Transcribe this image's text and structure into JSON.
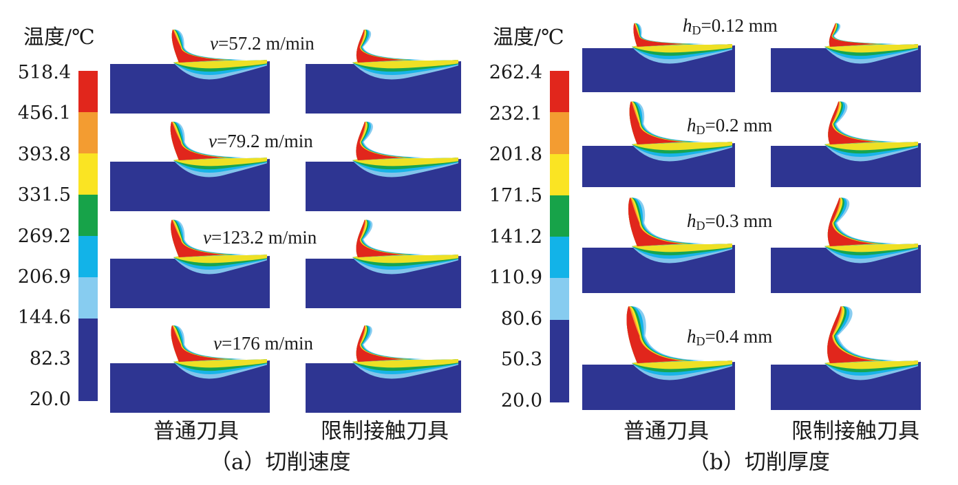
{
  "panel_a": {
    "unit_title": "温度/℃",
    "colorbar": {
      "ticks": [
        "518.4",
        "456.1",
        "393.8",
        "331.5",
        "269.2",
        "206.9",
        "144.6",
        "82.3",
        "20.0"
      ],
      "band_colors": [
        "#e1261c",
        "#f39c31",
        "#fae423",
        "#17a349",
        "#12b3e8",
        "#87ccf0",
        "#2e3592",
        "#2e3592"
      ]
    },
    "labels": [
      "v=57.2 m/min",
      "v=79.2 m/min",
      "v=123.2 m/min",
      "v=176 m/min"
    ],
    "label_parts": [
      {
        "var": "v",
        "value": "=57.2 m/min"
      },
      {
        "var": "v",
        "value": "=79.2 m/min"
      },
      {
        "var": "v",
        "value": "=123.2 m/min"
      },
      {
        "var": "v",
        "value": "=176 m/min"
      }
    ],
    "column_labels": [
      "普通刀具",
      "限制接触刀具"
    ],
    "caption": "（a）切削速度"
  },
  "panel_b": {
    "unit_title": "温度/℃",
    "colorbar": {
      "ticks": [
        "262.4",
        "232.1",
        "201.8",
        "171.5",
        "141.2",
        "110.9",
        "80.6",
        "50.3",
        "20.0"
      ],
      "band_colors": [
        "#e1261c",
        "#f39c31",
        "#fae423",
        "#17a349",
        "#12b3e8",
        "#87ccf0",
        "#2e3592",
        "#2e3592"
      ]
    },
    "label_parts": [
      {
        "var": "h",
        "sub": "D",
        "value": "=0.12 mm"
      },
      {
        "var": "h",
        "sub": "D",
        "value": "=0.2 mm"
      },
      {
        "var": "h",
        "sub": "D",
        "value": "=0.3 mm"
      },
      {
        "var": "h",
        "sub": "D",
        "value": "=0.4 mm"
      }
    ],
    "column_labels": [
      "普通刀具",
      "限制接触刀具"
    ],
    "caption": "（b）切削厚度"
  },
  "colors": {
    "workpiece": "#2e3592",
    "red": "#e1261c",
    "orange": "#f39c31",
    "yellow": "#fae423",
    "green": "#17a349",
    "cyan": "#12b3e8",
    "lightblue": "#87ccf0"
  }
}
